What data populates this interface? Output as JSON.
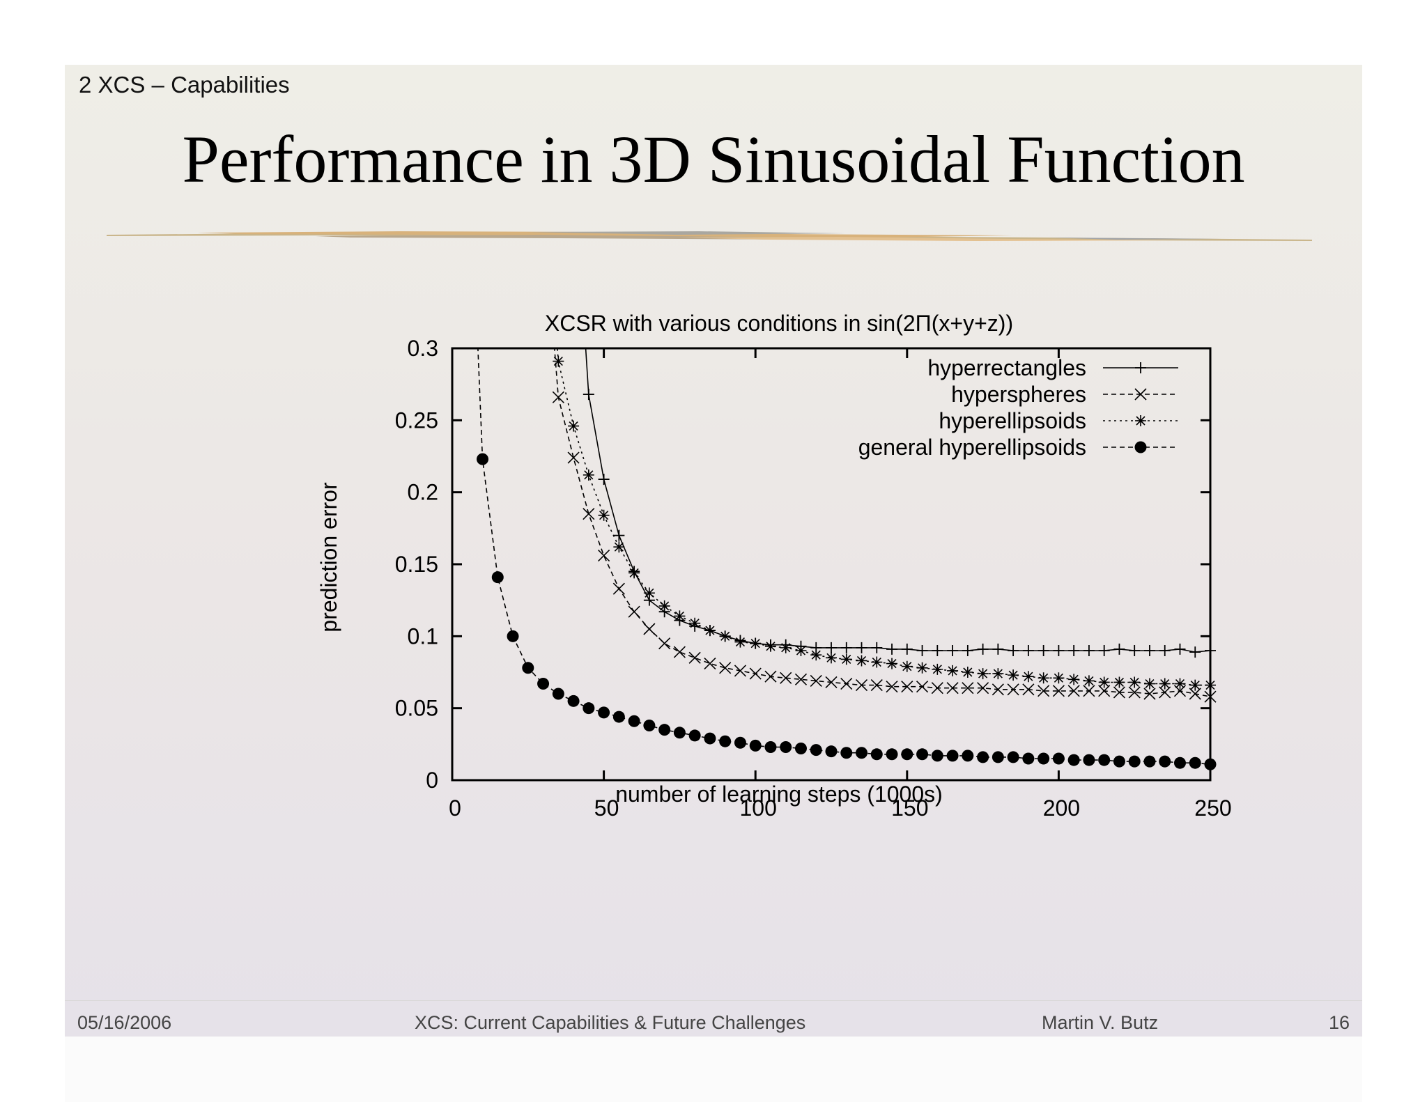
{
  "slide": {
    "section": "2 XCS – Capabilities",
    "title": "Performance in 3D Sinusoidal Function",
    "footer": {
      "date": "05/16/2006",
      "talk": "XCS: Current Capabilities & Future Challenges",
      "author": "Martin V. Butz",
      "page": "16"
    }
  },
  "chart_data": {
    "type": "line",
    "title": "XCSR with various conditions in sin(2Π(x+y+z))",
    "xlabel": "number of learning steps (1000s)",
    "ylabel": "prediction error",
    "xlim": [
      0,
      250
    ],
    "ylim": [
      0,
      0.3
    ],
    "xticks": [
      0,
      50,
      100,
      150,
      200,
      250
    ],
    "yticks": [
      0,
      0.05,
      0.1,
      0.15,
      0.2,
      0.25,
      0.3
    ],
    "xtick_labels": [
      "0",
      "50",
      "100",
      "150",
      "200",
      "250"
    ],
    "ytick_labels": [
      "0",
      "0.05",
      "0.1",
      "0.15",
      "0.2",
      "0.25",
      "0.3"
    ],
    "legend_position": "top-right",
    "series": [
      {
        "name": "hyperrectangles",
        "marker": "plus",
        "dash": "solid",
        "x": [
          45,
          50,
          55,
          60,
          65,
          70,
          75,
          80,
          85,
          90,
          95,
          100,
          105,
          110,
          115,
          120,
          125,
          130,
          135,
          140,
          145,
          150,
          155,
          160,
          165,
          170,
          175,
          180,
          185,
          190,
          195,
          200,
          205,
          210,
          215,
          220,
          225,
          230,
          235,
          240,
          245,
          250
        ],
        "y": [
          0.268,
          0.209,
          0.17,
          0.145,
          0.125,
          0.117,
          0.111,
          0.107,
          0.104,
          0.1,
          0.097,
          0.095,
          0.094,
          0.094,
          0.093,
          0.092,
          0.092,
          0.092,
          0.092,
          0.092,
          0.091,
          0.091,
          0.09,
          0.09,
          0.09,
          0.09,
          0.091,
          0.091,
          0.09,
          0.09,
          0.09,
          0.09,
          0.09,
          0.09,
          0.09,
          0.091,
          0.09,
          0.09,
          0.09,
          0.091,
          0.089,
          0.09
        ]
      },
      {
        "name": "hyperspheres",
        "marker": "x",
        "dash": "dashed",
        "x": [
          35,
          40,
          45,
          50,
          55,
          60,
          65,
          70,
          75,
          80,
          85,
          90,
          95,
          100,
          105,
          110,
          115,
          120,
          125,
          130,
          135,
          140,
          145,
          150,
          155,
          160,
          165,
          170,
          175,
          180,
          185,
          190,
          195,
          200,
          205,
          210,
          215,
          220,
          225,
          230,
          235,
          240,
          245,
          250
        ],
        "y": [
          0.266,
          0.224,
          0.185,
          0.156,
          0.133,
          0.117,
          0.105,
          0.095,
          0.089,
          0.085,
          0.081,
          0.078,
          0.076,
          0.074,
          0.072,
          0.071,
          0.07,
          0.069,
          0.068,
          0.067,
          0.066,
          0.066,
          0.065,
          0.065,
          0.065,
          0.064,
          0.064,
          0.064,
          0.064,
          0.063,
          0.063,
          0.063,
          0.062,
          0.062,
          0.062,
          0.062,
          0.062,
          0.061,
          0.061,
          0.06,
          0.061,
          0.062,
          0.06,
          0.058
        ]
      },
      {
        "name": "hyperellipsoids",
        "marker": "star",
        "dash": "dotted",
        "x": [
          35,
          40,
          45,
          50,
          55,
          60,
          65,
          70,
          75,
          80,
          85,
          90,
          95,
          100,
          105,
          110,
          115,
          120,
          125,
          130,
          135,
          140,
          145,
          150,
          155,
          160,
          165,
          170,
          175,
          180,
          185,
          190,
          195,
          200,
          205,
          210,
          215,
          220,
          225,
          230,
          235,
          240,
          245,
          250
        ],
        "y": [
          0.291,
          0.246,
          0.212,
          0.184,
          0.162,
          0.144,
          0.13,
          0.121,
          0.114,
          0.109,
          0.104,
          0.1,
          0.096,
          0.095,
          0.093,
          0.092,
          0.09,
          0.087,
          0.085,
          0.084,
          0.083,
          0.082,
          0.081,
          0.079,
          0.078,
          0.077,
          0.076,
          0.075,
          0.074,
          0.074,
          0.073,
          0.072,
          0.071,
          0.071,
          0.07,
          0.069,
          0.068,
          0.068,
          0.068,
          0.067,
          0.067,
          0.067,
          0.066,
          0.066
        ]
      },
      {
        "name": "general hyperellipsoids",
        "marker": "circle",
        "dash": "dashed",
        "x": [
          10,
          15,
          20,
          25,
          30,
          35,
          40,
          45,
          50,
          55,
          60,
          65,
          70,
          75,
          80,
          85,
          90,
          95,
          100,
          105,
          110,
          115,
          120,
          125,
          130,
          135,
          140,
          145,
          150,
          155,
          160,
          165,
          170,
          175,
          180,
          185,
          190,
          195,
          200,
          205,
          210,
          215,
          220,
          225,
          230,
          235,
          240,
          245,
          250
        ],
        "y": [
          0.223,
          0.141,
          0.1,
          0.078,
          0.067,
          0.06,
          0.055,
          0.05,
          0.047,
          0.044,
          0.041,
          0.038,
          0.035,
          0.033,
          0.031,
          0.029,
          0.027,
          0.026,
          0.024,
          0.023,
          0.023,
          0.022,
          0.021,
          0.02,
          0.019,
          0.019,
          0.018,
          0.018,
          0.018,
          0.018,
          0.017,
          0.017,
          0.017,
          0.016,
          0.016,
          0.016,
          0.015,
          0.015,
          0.015,
          0.014,
          0.014,
          0.014,
          0.013,
          0.013,
          0.013,
          0.013,
          0.012,
          0.012,
          0.011
        ]
      }
    ]
  }
}
